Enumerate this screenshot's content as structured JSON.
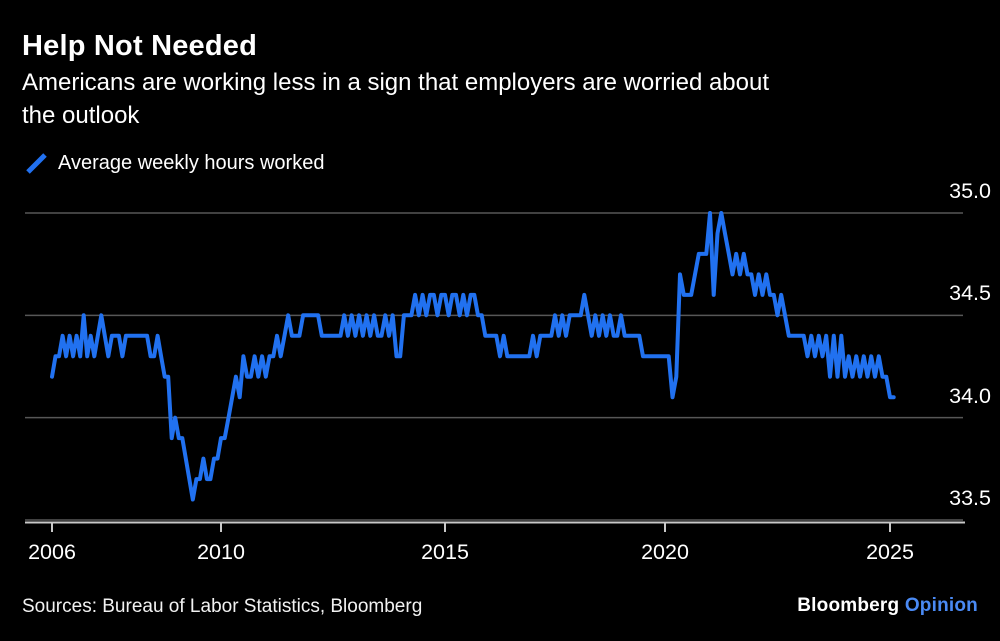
{
  "page": {
    "background": "#000000"
  },
  "header": {
    "title": "Help Not Needed",
    "subtitle_lines": [
      "Americans are working less in a sign that employers are worried about",
      "the outlook"
    ]
  },
  "legend": {
    "label": "Average weekly hours worked",
    "swatch_color": "#2171f0"
  },
  "footer": {
    "sources": "Sources: Bureau of Labor Statistics, Bloomberg",
    "brand": "Bloomberg",
    "brand_suffix": "Opinion",
    "brand_suffix_color": "#4a8af4"
  },
  "chart_data": {
    "type": "line",
    "title": "Help Not Needed",
    "subtitle": "Americans are working less in a sign that employers are worried about the outlook",
    "xlabel": "",
    "ylabel": "Average weekly hours worked",
    "grid": "horizontal-only",
    "legend_position": "top-left",
    "background_color": "#000000",
    "grid_color": "#575757",
    "axis_color": "#c9c9c9",
    "line_color": "#2171f0",
    "x_ticks": [
      2006,
      2010,
      2015,
      2020,
      2025
    ],
    "y_ticks": [
      {
        "value": 35.0,
        "label": "35.0"
      },
      {
        "value": 34.5,
        "label": "34.5"
      },
      {
        "value": 34.0,
        "label": "34.0"
      },
      {
        "value": 33.5,
        "label": "33.5"
      }
    ],
    "x_range": [
      2005.9,
      2026.6
    ],
    "y_range": [
      33.4,
      35.1
    ],
    "source": "Bureau of Labor Statistics, Bloomberg",
    "series": [
      {
        "name": "Average weekly hours worked",
        "unit": "hours",
        "frequency": "monthly",
        "start_year": 2006,
        "start_month": 1,
        "values": [
          34.2,
          34.3,
          34.3,
          34.4,
          34.3,
          34.4,
          34.3,
          34.4,
          34.3,
          34.5,
          34.3,
          34.4,
          34.3,
          34.4,
          34.5,
          34.4,
          34.3,
          34.4,
          34.4,
          34.4,
          34.3,
          34.4,
          34.4,
          34.4,
          34.4,
          34.4,
          34.4,
          34.4,
          34.3,
          34.3,
          34.4,
          34.3,
          34.2,
          34.2,
          33.9,
          34.0,
          33.9,
          33.9,
          33.8,
          33.7,
          33.6,
          33.7,
          33.7,
          33.8,
          33.7,
          33.7,
          33.8,
          33.8,
          33.9,
          33.9,
          34.0,
          34.1,
          34.2,
          34.1,
          34.3,
          34.2,
          34.2,
          34.3,
          34.2,
          34.3,
          34.2,
          34.3,
          34.3,
          34.4,
          34.3,
          34.4,
          34.5,
          34.4,
          34.4,
          34.4,
          34.5,
          34.5,
          34.5,
          34.5,
          34.5,
          34.4,
          34.4,
          34.4,
          34.4,
          34.4,
          34.4,
          34.5,
          34.4,
          34.5,
          34.4,
          34.5,
          34.4,
          34.5,
          34.4,
          34.5,
          34.4,
          34.4,
          34.5,
          34.4,
          34.5,
          34.3,
          34.3,
          34.5,
          34.5,
          34.5,
          34.6,
          34.5,
          34.6,
          34.5,
          34.6,
          34.6,
          34.5,
          34.6,
          34.6,
          34.5,
          34.6,
          34.6,
          34.5,
          34.6,
          34.5,
          34.6,
          34.6,
          34.5,
          34.5,
          34.4,
          34.4,
          34.4,
          34.4,
          34.3,
          34.4,
          34.3,
          34.3,
          34.3,
          34.3,
          34.3,
          34.3,
          34.3,
          34.4,
          34.3,
          34.4,
          34.4,
          34.4,
          34.4,
          34.5,
          34.4,
          34.5,
          34.4,
          34.5,
          34.5,
          34.5,
          34.5,
          34.6,
          34.5,
          34.4,
          34.5,
          34.4,
          34.5,
          34.4,
          34.5,
          34.4,
          34.4,
          34.5,
          34.4,
          34.4,
          34.4,
          34.4,
          34.4,
          34.3,
          34.3,
          34.3,
          34.3,
          34.3,
          34.3,
          34.3,
          34.3,
          34.1,
          34.2,
          34.7,
          34.6,
          34.6,
          34.6,
          34.7,
          34.8,
          34.8,
          34.8,
          35.0,
          34.6,
          34.9,
          35.0,
          34.9,
          34.8,
          34.7,
          34.8,
          34.7,
          34.8,
          34.7,
          34.7,
          34.6,
          34.7,
          34.6,
          34.7,
          34.6,
          34.6,
          34.5,
          34.6,
          34.5,
          34.4,
          34.4,
          34.4,
          34.4,
          34.4,
          34.3,
          34.4,
          34.3,
          34.4,
          34.3,
          34.4,
          34.2,
          34.4,
          34.2,
          34.4,
          34.2,
          34.3,
          34.2,
          34.3,
          34.2,
          34.3,
          34.2,
          34.3,
          34.2,
          34.3,
          34.2,
          34.2,
          34.1,
          34.1
        ]
      }
    ]
  }
}
